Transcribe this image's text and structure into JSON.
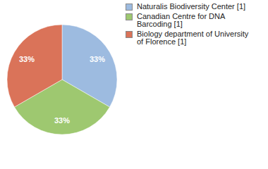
{
  "chart_data": {
    "type": "pie",
    "categories": [
      "Naturalis Biodiversity Center [1]",
      "Canadian Centre for DNA Barcoding [1]",
      "Biology department of University of Florence [1]"
    ],
    "values": [
      33,
      33,
      33
    ],
    "value_labels": [
      "33%",
      "33%",
      "33%"
    ],
    "colors": [
      "#9dbbe0",
      "#9ec870",
      "#da7359"
    ],
    "data_labels": true,
    "legend": "top right"
  }
}
